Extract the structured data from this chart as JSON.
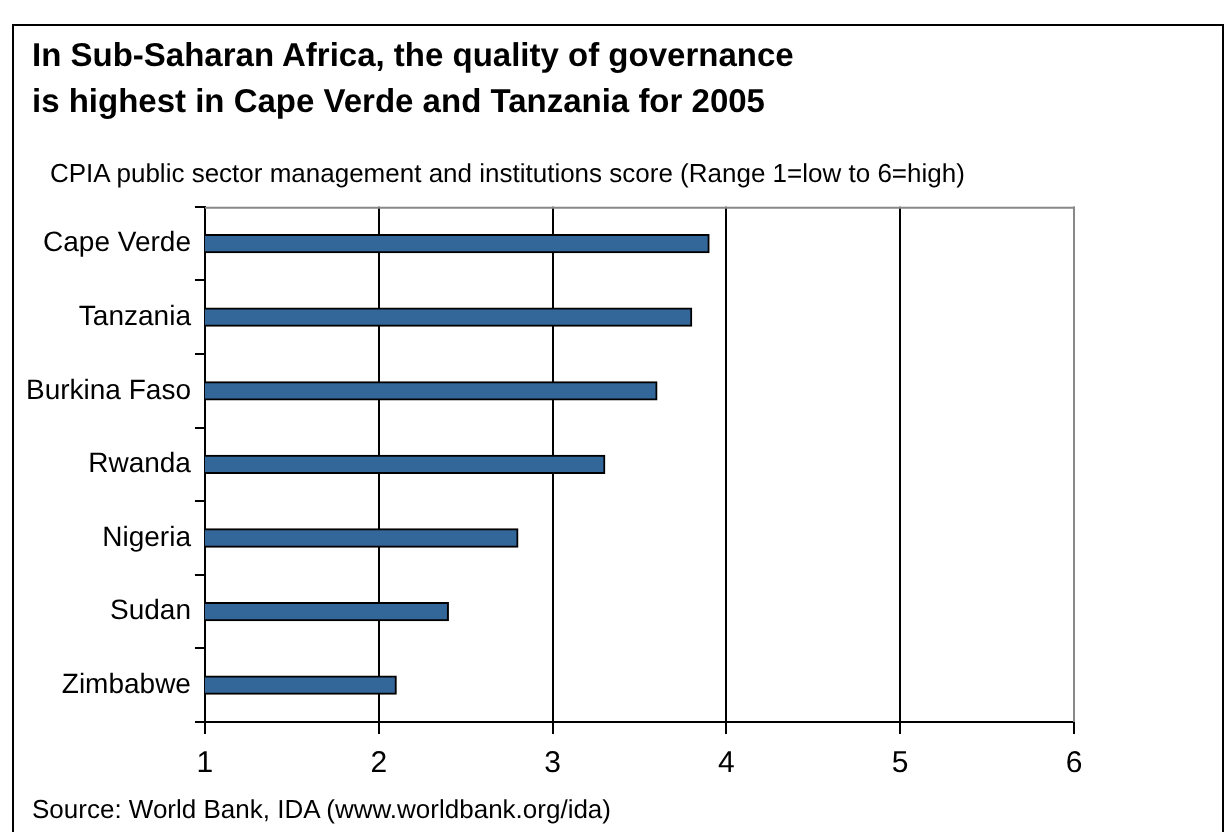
{
  "chart_data": {
    "type": "bar",
    "orientation": "horizontal",
    "title": "In Sub-Saharan Africa, the quality of governance\nis highest in Cape Verde and Tanzania for 2005",
    "subtitle": "CPIA public sector management and institutions score (Range 1=low to 6=high)",
    "categories": [
      "Cape Verde",
      "Tanzania",
      "Burkina Faso",
      "Rwanda",
      "Nigeria",
      "Sudan",
      "Zimbabwe"
    ],
    "values": [
      3.9,
      3.8,
      3.6,
      3.3,
      2.8,
      2.4,
      2.1
    ],
    "color": "#336699",
    "xlim": [
      1,
      6
    ],
    "xticks": [
      1,
      2,
      3,
      4,
      5,
      6
    ],
    "grid": "x",
    "legend": false,
    "annotations": [
      "Source: World Bank, IDA (www.worldbank.org/ida)"
    ]
  }
}
